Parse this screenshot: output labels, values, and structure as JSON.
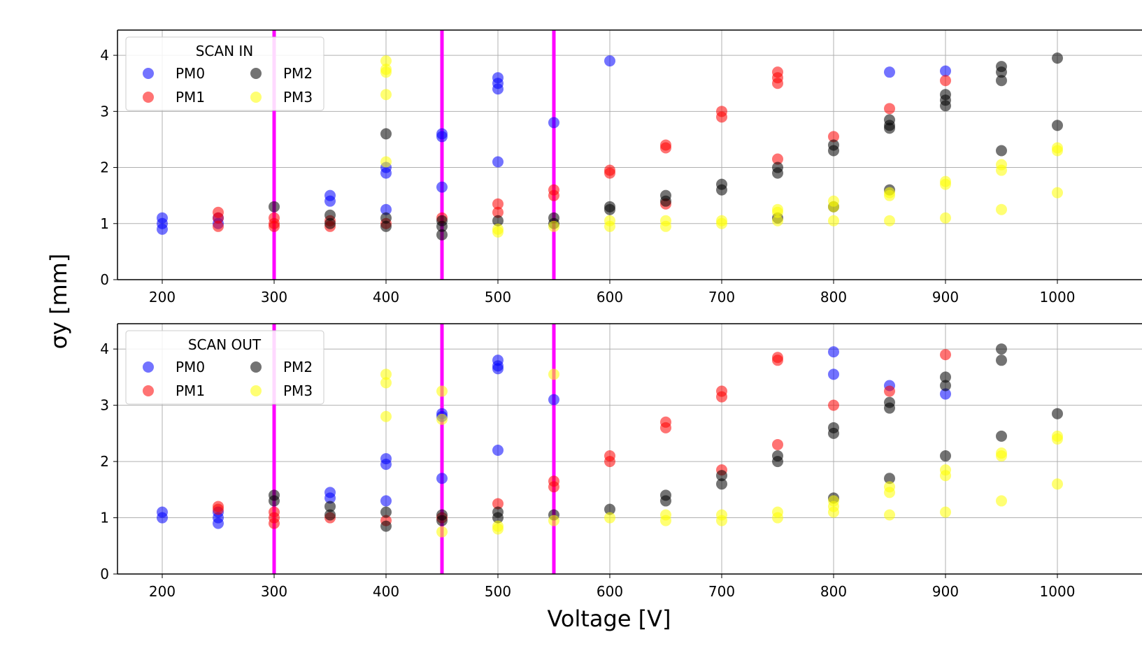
{
  "figure": {
    "ylabel": "σy [mm]",
    "xlabel": "Voltage [V]"
  },
  "colors": {
    "PM0": "#0000ff",
    "PM1": "#ff0000",
    "PM2": "#000000",
    "PM3": "#ffff00",
    "vline": "#ff00ff",
    "grid": "#b0b0b0"
  },
  "chart_data": [
    {
      "type": "scatter",
      "legend_title": "SCAN IN",
      "legend_position": "top-left",
      "grid": true,
      "xlim": [
        160,
        1020
      ],
      "ylim": [
        0,
        4.45
      ],
      "xticks": [
        200,
        300,
        400,
        500,
        600,
        700,
        800,
        900,
        1000
      ],
      "yticks": [
        0,
        1,
        2,
        3,
        4
      ],
      "vlines": [
        300,
        450,
        550
      ],
      "series": [
        {
          "name": "PM0",
          "points": [
            [
              200,
              1.1
            ],
            [
              200,
              1.0
            ],
            [
              200,
              0.9
            ],
            [
              250,
              1.1
            ],
            [
              250,
              1.0
            ],
            [
              350,
              1.5
            ],
            [
              350,
              1.4
            ],
            [
              400,
              2.0
            ],
            [
              400,
              1.9
            ],
            [
              400,
              1.25
            ],
            [
              450,
              2.6
            ],
            [
              450,
              2.55
            ],
            [
              450,
              1.65
            ],
            [
              500,
              3.6
            ],
            [
              500,
              3.5
            ],
            [
              500,
              3.4
            ],
            [
              500,
              2.1
            ],
            [
              550,
              2.8
            ],
            [
              600,
              3.9
            ],
            [
              850,
              3.7
            ],
            [
              900,
              3.72
            ]
          ]
        },
        {
          "name": "PM1",
          "points": [
            [
              250,
              1.2
            ],
            [
              250,
              1.1
            ],
            [
              250,
              0.95
            ],
            [
              300,
              1.1
            ],
            [
              300,
              1.0
            ],
            [
              300,
              0.95
            ],
            [
              350,
              1.05
            ],
            [
              350,
              0.95
            ],
            [
              400,
              1.0
            ],
            [
              450,
              1.1
            ],
            [
              500,
              1.35
            ],
            [
              500,
              1.2
            ],
            [
              550,
              1.6
            ],
            [
              550,
              1.5
            ],
            [
              600,
              1.95
            ],
            [
              600,
              1.9
            ],
            [
              650,
              2.4
            ],
            [
              650,
              2.35
            ],
            [
              650,
              1.35
            ],
            [
              700,
              3.0
            ],
            [
              700,
              2.9
            ],
            [
              750,
              3.7
            ],
            [
              750,
              3.6
            ],
            [
              750,
              3.5
            ],
            [
              750,
              2.15
            ],
            [
              800,
              2.55
            ],
            [
              850,
              3.05
            ],
            [
              900,
              3.55
            ]
          ]
        },
        {
          "name": "PM2",
          "points": [
            [
              300,
              1.3
            ],
            [
              350,
              1.15
            ],
            [
              350,
              1.0
            ],
            [
              400,
              2.6
            ],
            [
              400,
              1.1
            ],
            [
              400,
              0.95
            ],
            [
              450,
              1.05
            ],
            [
              450,
              0.95
            ],
            [
              450,
              0.8
            ],
            [
              500,
              1.05
            ],
            [
              550,
              1.1
            ],
            [
              550,
              1.0
            ],
            [
              600,
              1.3
            ],
            [
              600,
              1.25
            ],
            [
              650,
              1.5
            ],
            [
              650,
              1.4
            ],
            [
              700,
              1.7
            ],
            [
              700,
              1.6
            ],
            [
              750,
              2.0
            ],
            [
              750,
              1.9
            ],
            [
              750,
              1.1
            ],
            [
              800,
              2.4
            ],
            [
              800,
              2.3
            ],
            [
              800,
              1.3
            ],
            [
              850,
              2.85
            ],
            [
              850,
              2.75
            ],
            [
              850,
              2.7
            ],
            [
              850,
              1.6
            ],
            [
              900,
              3.3
            ],
            [
              900,
              3.2
            ],
            [
              900,
              3.1
            ],
            [
              950,
              3.8
            ],
            [
              950,
              3.7
            ],
            [
              950,
              3.55
            ],
            [
              950,
              2.3
            ],
            [
              1000,
              3.95
            ],
            [
              1000,
              2.75
            ]
          ]
        },
        {
          "name": "PM3",
          "points": [
            [
              400,
              3.9
            ],
            [
              400,
              3.75
            ],
            [
              400,
              3.7
            ],
            [
              400,
              3.3
            ],
            [
              400,
              2.1
            ],
            [
              500,
              0.9
            ],
            [
              500,
              0.85
            ],
            [
              550,
              0.95
            ],
            [
              600,
              1.05
            ],
            [
              600,
              0.95
            ],
            [
              650,
              1.05
            ],
            [
              650,
              0.95
            ],
            [
              700,
              1.05
            ],
            [
              700,
              1.0
            ],
            [
              750,
              1.25
            ],
            [
              750,
              1.2
            ],
            [
              750,
              1.05
            ],
            [
              800,
              1.4
            ],
            [
              800,
              1.3
            ],
            [
              800,
              1.05
            ],
            [
              850,
              1.55
            ],
            [
              850,
              1.5
            ],
            [
              850,
              1.05
            ],
            [
              900,
              1.75
            ],
            [
              900,
              1.7
            ],
            [
              900,
              1.1
            ],
            [
              950,
              2.05
            ],
            [
              950,
              1.95
            ],
            [
              950,
              1.25
            ],
            [
              1000,
              2.35
            ],
            [
              1000,
              2.3
            ],
            [
              1000,
              1.55
            ]
          ]
        }
      ]
    },
    {
      "type": "scatter",
      "legend_title": "SCAN OUT",
      "legend_position": "top-left",
      "grid": true,
      "xlim": [
        160,
        1020
      ],
      "ylim": [
        0,
        4.45
      ],
      "xticks": [
        200,
        300,
        400,
        500,
        600,
        700,
        800,
        900,
        1000
      ],
      "yticks": [
        0,
        1,
        2,
        3,
        4
      ],
      "vlines": [
        300,
        450,
        550
      ],
      "series": [
        {
          "name": "PM0",
          "points": [
            [
              200,
              1.1
            ],
            [
              200,
              1.0
            ],
            [
              250,
              1.1
            ],
            [
              250,
              1.0
            ],
            [
              250,
              0.9
            ],
            [
              350,
              1.45
            ],
            [
              350,
              1.35
            ],
            [
              400,
              2.05
            ],
            [
              400,
              1.95
            ],
            [
              400,
              1.3
            ],
            [
              450,
              2.85
            ],
            [
              450,
              2.8
            ],
            [
              450,
              1.7
            ],
            [
              500,
              3.8
            ],
            [
              500,
              3.7
            ],
            [
              500,
              3.65
            ],
            [
              500,
              2.2
            ],
            [
              550,
              3.1
            ],
            [
              800,
              3.95
            ],
            [
              800,
              3.55
            ],
            [
              850,
              3.35
            ],
            [
              900,
              3.2
            ]
          ]
        },
        {
          "name": "PM1",
          "points": [
            [
              250,
              1.2
            ],
            [
              250,
              1.15
            ],
            [
              300,
              1.1
            ],
            [
              300,
              1.0
            ],
            [
              300,
              0.9
            ],
            [
              350,
              1.0
            ],
            [
              400,
              0.95
            ],
            [
              450,
              1.0
            ],
            [
              500,
              1.25
            ],
            [
              550,
              1.65
            ],
            [
              550,
              1.55
            ],
            [
              600,
              2.1
            ],
            [
              600,
              2.0
            ],
            [
              650,
              2.7
            ],
            [
              650,
              2.6
            ],
            [
              700,
              3.25
            ],
            [
              700,
              3.15
            ],
            [
              700,
              1.85
            ],
            [
              750,
              3.85
            ],
            [
              750,
              3.8
            ],
            [
              750,
              2.3
            ],
            [
              800,
              3.0
            ],
            [
              850,
              3.25
            ],
            [
              900,
              3.9
            ]
          ]
        },
        {
          "name": "PM2",
          "points": [
            [
              300,
              1.4
            ],
            [
              300,
              1.3
            ],
            [
              350,
              1.2
            ],
            [
              350,
              1.05
            ],
            [
              400,
              1.1
            ],
            [
              400,
              0.85
            ],
            [
              450,
              1.05
            ],
            [
              450,
              0.95
            ],
            [
              500,
              1.1
            ],
            [
              500,
              1.0
            ],
            [
              550,
              1.05
            ],
            [
              600,
              1.15
            ],
            [
              650,
              1.4
            ],
            [
              650,
              1.3
            ],
            [
              700,
              1.75
            ],
            [
              700,
              1.6
            ],
            [
              750,
              2.1
            ],
            [
              750,
              2.0
            ],
            [
              800,
              2.6
            ],
            [
              800,
              2.5
            ],
            [
              800,
              1.35
            ],
            [
              850,
              3.05
            ],
            [
              850,
              2.95
            ],
            [
              850,
              1.7
            ],
            [
              900,
              3.5
            ],
            [
              900,
              3.35
            ],
            [
              900,
              2.1
            ],
            [
              950,
              4.0
            ],
            [
              950,
              3.8
            ],
            [
              950,
              2.45
            ],
            [
              1000,
              2.85
            ]
          ]
        },
        {
          "name": "PM3",
          "points": [
            [
              400,
              3.55
            ],
            [
              400,
              3.4
            ],
            [
              400,
              2.8
            ],
            [
              450,
              3.25
            ],
            [
              450,
              2.75
            ],
            [
              450,
              0.75
            ],
            [
              500,
              0.85
            ],
            [
              500,
              0.8
            ],
            [
              550,
              3.55
            ],
            [
              550,
              0.95
            ],
            [
              600,
              1.0
            ],
            [
              650,
              1.05
            ],
            [
              650,
              0.95
            ],
            [
              700,
              1.05
            ],
            [
              700,
              0.95
            ],
            [
              750,
              1.1
            ],
            [
              750,
              1.0
            ],
            [
              800,
              1.3
            ],
            [
              800,
              1.2
            ],
            [
              800,
              1.1
            ],
            [
              850,
              1.55
            ],
            [
              850,
              1.45
            ],
            [
              850,
              1.05
            ],
            [
              900,
              1.85
            ],
            [
              900,
              1.75
            ],
            [
              900,
              1.1
            ],
            [
              950,
              2.15
            ],
            [
              950,
              2.1
            ],
            [
              950,
              1.3
            ],
            [
              1000,
              2.45
            ],
            [
              1000,
              2.4
            ],
            [
              1000,
              1.6
            ]
          ]
        }
      ]
    }
  ]
}
